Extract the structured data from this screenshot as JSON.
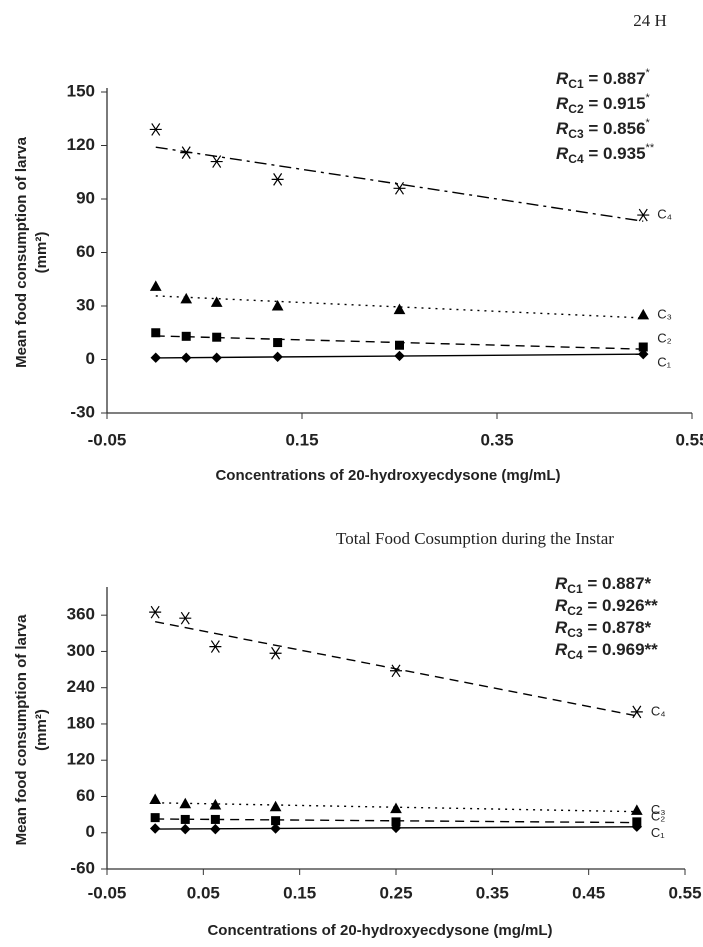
{
  "chart_data": [
    {
      "type": "scatter",
      "title": "24 H",
      "x": [
        0,
        0.03125,
        0.0625,
        0.125,
        0.25,
        0.5
      ],
      "series": [
        {
          "name": "C₁",
          "color": "#000000",
          "marker": "diamond",
          "line": "solid",
          "values": [
            1,
            1,
            1,
            1.5,
            2,
            3
          ]
        },
        {
          "name": "C₂",
          "color": "#000000",
          "marker": "square",
          "line": "dashed",
          "values": [
            15,
            13,
            12.5,
            9.5,
            8,
            7
          ]
        },
        {
          "name": "C₃",
          "color": "#000000",
          "marker": "triangle",
          "line": "dotted",
          "values": [
            41,
            34,
            32,
            30,
            28,
            25
          ]
        },
        {
          "name": "C₄",
          "color": "#000000",
          "marker": "asterisk",
          "line": "dashdot",
          "values": [
            129,
            116,
            111,
            101,
            96,
            81
          ]
        }
      ],
      "trendline": true,
      "xlim": [
        -0.05,
        0.55
      ],
      "xticks": [
        -0.05,
        0.15,
        0.35,
        0.55
      ],
      "ylim": [
        -30,
        150
      ],
      "yticks": [
        -30,
        0,
        30,
        60,
        90,
        120,
        150
      ],
      "xlabel": "Concentrations of 20-hydroxyecdysone (mg/mL)",
      "ylabel": [
        "Mean food consumption of larva",
        "(mm²)"
      ],
      "annotations": [
        {
          "symbol": "R",
          "subscript": "C1",
          "text": " = 0.887",
          "superscript": "*"
        },
        {
          "symbol": "R",
          "subscript": "C2",
          "text": " = 0.915",
          "superscript": "*"
        },
        {
          "symbol": "R",
          "subscript": "C3",
          "text": " = 0.856",
          "superscript": "*"
        },
        {
          "symbol": "R",
          "subscript": "C4",
          "text": " = 0.935",
          "superscript": "**"
        }
      ]
    },
    {
      "type": "scatter",
      "title": "Total Food Cosumption during the Instar",
      "x": [
        0,
        0.03125,
        0.0625,
        0.125,
        0.25,
        0.5
      ],
      "series": [
        {
          "name": "C₁",
          "color": "#000000",
          "marker": "diamond",
          "line": "solid",
          "values": [
            7,
            6,
            6,
            7,
            8,
            10
          ]
        },
        {
          "name": "C₂",
          "color": "#000000",
          "marker": "square",
          "line": "dashed",
          "values": [
            25,
            22,
            22,
            20,
            18,
            18
          ]
        },
        {
          "name": "C₃",
          "color": "#000000",
          "marker": "triangle",
          "line": "dotted",
          "values": [
            55,
            48,
            46,
            43,
            40,
            37
          ]
        },
        {
          "name": "C₄",
          "color": "#000000",
          "marker": "asterisk",
          "line": "dashed",
          "values": [
            365,
            355,
            308,
            297,
            268,
            200
          ]
        }
      ],
      "trendline": true,
      "xlim": [
        -0.05,
        0.55
      ],
      "xticks": [
        -0.05,
        0.05,
        0.15,
        0.25,
        0.35,
        0.45,
        0.55
      ],
      "ylim": [
        -60,
        400
      ],
      "yticks": [
        -60,
        0,
        60,
        120,
        180,
        240,
        300,
        360
      ],
      "xlabel": "Concentrations  of 20-hydroxyecdysone (mg/mL)",
      "ylabel": [
        "Mean food consumption of larva",
        "(mm²)"
      ],
      "annotations": [
        {
          "symbol": "R",
          "subscript": "C1",
          "text": " = 0.887*"
        },
        {
          "symbol": "R",
          "subscript": "C2",
          "text": " = 0.926**"
        },
        {
          "symbol": "R",
          "subscript": "C3",
          "text": " = 0.878*"
        },
        {
          "symbol": "R",
          "subscript": "C4",
          "text": " = 0.969**"
        }
      ]
    }
  ]
}
